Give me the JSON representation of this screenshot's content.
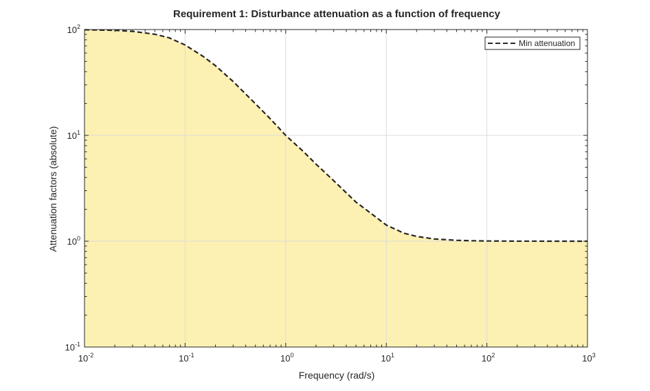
{
  "chart_data": {
    "type": "area",
    "title": "Requirement 1: Disturbance attenuation as a function of frequency",
    "xlabel": "Frequency (rad/s)",
    "ylabel": "Attenuation factors (absolute)",
    "xscale": "log",
    "yscale": "log",
    "xlim": [
      0.01,
      1000
    ],
    "ylim": [
      0.1,
      100
    ],
    "x_ticks": [
      {
        "base": "10",
        "exp": "-2"
      },
      {
        "base": "10",
        "exp": "-1"
      },
      {
        "base": "10",
        "exp": "0"
      },
      {
        "base": "10",
        "exp": "1"
      },
      {
        "base": "10",
        "exp": "2"
      },
      {
        "base": "10",
        "exp": "3"
      }
    ],
    "y_ticks": [
      {
        "base": "10",
        "exp": "-1"
      },
      {
        "base": "10",
        "exp": "0"
      },
      {
        "base": "10",
        "exp": "1"
      },
      {
        "base": "10",
        "exp": "2"
      }
    ],
    "grid": true,
    "legend": {
      "position": "top-right",
      "entries": [
        "Min attenuation"
      ]
    },
    "series": [
      {
        "name": "Min attenuation",
        "style": "dashed",
        "fill_below": true,
        "x": [
          0.01,
          0.02,
          0.03,
          0.05,
          0.07,
          0.1,
          0.15,
          0.2,
          0.3,
          0.5,
          0.7,
          1,
          1.5,
          2,
          3,
          5,
          7,
          10,
          15,
          20,
          30,
          50,
          70,
          100,
          200,
          500,
          1000
        ],
        "y": [
          99.5,
          98.3,
          96.2,
          90.3,
          83.3,
          71.4,
          56.0,
          45.6,
          32.3,
          19.9,
          14.4,
          10.0,
          7.03,
          5.35,
          3.73,
          2.34,
          1.84,
          1.42,
          1.19,
          1.11,
          1.05,
          1.02,
          1.01,
          1.005,
          1.0012,
          1.0002,
          1.0
        ]
      }
    ]
  },
  "colors": {
    "fill": "#fcf0b2",
    "line": "#262626",
    "axis": "#262626",
    "grid": "#dcdcdc",
    "background": "#ffffff"
  }
}
